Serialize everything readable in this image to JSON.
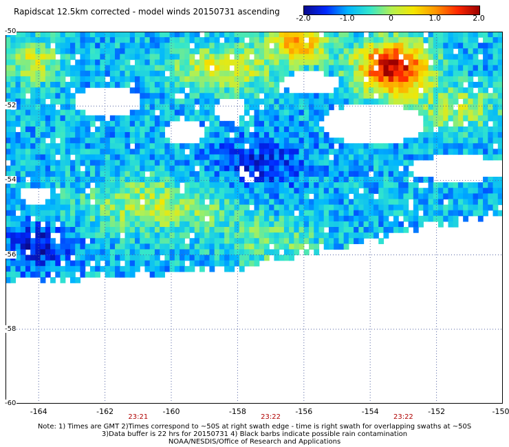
{
  "title": "Rapidscat 12.5km corrected - model winds 20150731 ascending",
  "colorbar": {
    "ticks": [
      "-2.0",
      "-1.0",
      "0",
      "1.0",
      "2.0"
    ],
    "tick_values": [
      -2.0,
      -1.0,
      0,
      1.0,
      2.0
    ],
    "colors": [
      "#0a0a8c",
      "#0028ff",
      "#00b4ff",
      "#33e6cc",
      "#b4f050",
      "#f5e600",
      "#ff9600",
      "#ff2800",
      "#9b0000"
    ]
  },
  "map": {
    "lon_ticks": [
      "-164",
      "-162",
      "-160",
      "-158",
      "-156",
      "-154",
      "-152",
      "-150"
    ],
    "lon_values": [
      -164,
      -162,
      -160,
      -158,
      -156,
      -154,
      -152,
      -150
    ],
    "lat_ticks": [
      "-50",
      "-52",
      "-54",
      "-56",
      "-58",
      "-60"
    ],
    "lat_values": [
      -50,
      -52,
      -54,
      -56,
      -58,
      -60
    ],
    "lon_range": [
      -165,
      -150
    ],
    "lat_range": [
      -60,
      -50
    ],
    "time_labels": [
      "23:21",
      "23:22",
      "23:22"
    ],
    "time_lons": [
      -161.0,
      -157.0,
      -153.0
    ],
    "grid": "dotted"
  },
  "notes": [
    "Note: 1) Times are GMT 2)Times correspond to ~50S at right swath edge - time is right swath for overlapping swaths at ~50S",
    "3)Data buffer is 22 hrs for 20150731 4) Black barbs indicate possible rain contamination",
    "NOAA/NESDIS/Office of Research and Applications"
  ]
}
